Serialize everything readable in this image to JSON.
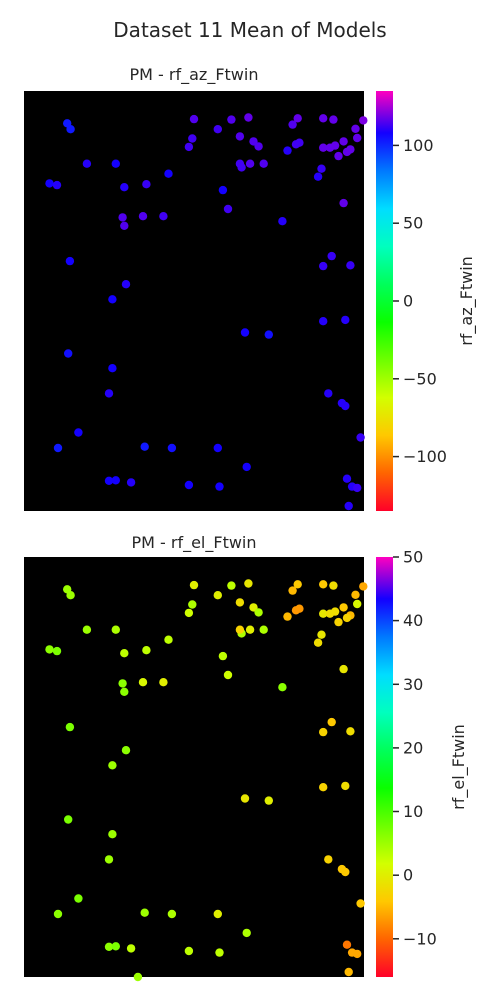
{
  "figure": {
    "title": "Dataset 11 Mean of Models"
  },
  "chart_data": [
    {
      "type": "scatter",
      "title": "PM - rf_az_Ftwin",
      "colorbar": {
        "label": "rf_az_Ftwin",
        "range": [
          -135,
          135
        ],
        "ticks": [
          100,
          50,
          0,
          -50,
          -100
        ],
        "tick_labels": [
          "100",
          "50",
          "0",
          "−50",
          "−100"
        ],
        "colormap": "gist_rainbow"
      },
      "axes": {
        "xticks": false,
        "yticks": false,
        "background": "#000000",
        "grid": false,
        "xlim": [
          0,
          1
        ],
        "ylim": [
          0,
          1
        ]
      },
      "points": [
        {
          "x": 0.127,
          "y": 0.923,
          "v": 103
        },
        {
          "x": 0.137,
          "y": 0.909,
          "v": 103
        },
        {
          "x": 0.075,
          "y": 0.78,
          "v": 108
        },
        {
          "x": 0.097,
          "y": 0.776,
          "v": 110
        },
        {
          "x": 0.185,
          "y": 0.827,
          "v": 110
        },
        {
          "x": 0.27,
          "y": 0.827,
          "v": 108
        },
        {
          "x": 0.295,
          "y": 0.771,
          "v": 110
        },
        {
          "x": 0.36,
          "y": 0.778,
          "v": 112
        },
        {
          "x": 0.35,
          "y": 0.702,
          "v": 115
        },
        {
          "x": 0.29,
          "y": 0.699,
          "v": 115
        },
        {
          "x": 0.295,
          "y": 0.679,
          "v": 115
        },
        {
          "x": 0.41,
          "y": 0.702,
          "v": 113
        },
        {
          "x": 0.425,
          "y": 0.803,
          "v": 108
        },
        {
          "x": 0.5,
          "y": 0.933,
          "v": 115
        },
        {
          "x": 0.485,
          "y": 0.867,
          "v": 113
        },
        {
          "x": 0.495,
          "y": 0.887,
          "v": 113
        },
        {
          "x": 0.57,
          "y": 0.909,
          "v": 113
        },
        {
          "x": 0.61,
          "y": 0.932,
          "v": 115
        },
        {
          "x": 0.66,
          "y": 0.937,
          "v": 117
        },
        {
          "x": 0.64,
          "y": 0.818,
          "v": 113
        },
        {
          "x": 0.635,
          "y": 0.827,
          "v": 113
        },
        {
          "x": 0.585,
          "y": 0.764,
          "v": 108
        },
        {
          "x": 0.6,
          "y": 0.719,
          "v": 113
        },
        {
          "x": 0.635,
          "y": 0.892,
          "v": 115
        },
        {
          "x": 0.665,
          "y": 0.827,
          "v": 115
        },
        {
          "x": 0.675,
          "y": 0.88,
          "v": 115
        },
        {
          "x": 0.69,
          "y": 0.868,
          "v": 115
        },
        {
          "x": 0.705,
          "y": 0.827,
          "v": 115
        },
        {
          "x": 0.79,
          "y": 0.92,
          "v": 115
        },
        {
          "x": 0.805,
          "y": 0.935,
          "v": 117
        },
        {
          "x": 0.8,
          "y": 0.873,
          "v": 113
        },
        {
          "x": 0.81,
          "y": 0.877,
          "v": 113
        },
        {
          "x": 0.775,
          "y": 0.858,
          "v": 110
        },
        {
          "x": 0.76,
          "y": 0.69,
          "v": 110
        },
        {
          "x": 0.88,
          "y": 0.935,
          "v": 117
        },
        {
          "x": 0.91,
          "y": 0.932,
          "v": 117
        },
        {
          "x": 0.88,
          "y": 0.865,
          "v": 117
        },
        {
          "x": 0.9,
          "y": 0.865,
          "v": 117
        },
        {
          "x": 0.915,
          "y": 0.87,
          "v": 117
        },
        {
          "x": 0.94,
          "y": 0.88,
          "v": 117
        },
        {
          "x": 0.96,
          "y": 0.861,
          "v": 117
        },
        {
          "x": 0.925,
          "y": 0.845,
          "v": 117
        },
        {
          "x": 0.95,
          "y": 0.855,
          "v": 117
        },
        {
          "x": 0.975,
          "y": 0.91,
          "v": 117
        },
        {
          "x": 0.998,
          "y": 0.93,
          "v": 120
        },
        {
          "x": 0.875,
          "y": 0.815,
          "v": 112
        },
        {
          "x": 0.865,
          "y": 0.796,
          "v": 110
        },
        {
          "x": 0.94,
          "y": 0.733,
          "v": 117
        },
        {
          "x": 0.98,
          "y": 0.888,
          "v": 117
        },
        {
          "x": 0.905,
          "y": 0.607,
          "v": 112
        },
        {
          "x": 0.88,
          "y": 0.583,
          "v": 112
        },
        {
          "x": 0.96,
          "y": 0.585,
          "v": 112
        },
        {
          "x": 0.135,
          "y": 0.595,
          "v": 108
        },
        {
          "x": 0.3,
          "y": 0.54,
          "v": 110
        },
        {
          "x": 0.26,
          "y": 0.504,
          "v": 108
        },
        {
          "x": 0.13,
          "y": 0.375,
          "v": 105
        },
        {
          "x": 0.26,
          "y": 0.34,
          "v": 108
        },
        {
          "x": 0.65,
          "y": 0.425,
          "v": 108
        },
        {
          "x": 0.88,
          "y": 0.452,
          "v": 110
        },
        {
          "x": 0.945,
          "y": 0.455,
          "v": 110
        },
        {
          "x": 0.72,
          "y": 0.42,
          "v": 105
        },
        {
          "x": 0.25,
          "y": 0.28,
          "v": 110
        },
        {
          "x": 0.1,
          "y": 0.15,
          "v": 103
        },
        {
          "x": 0.16,
          "y": 0.187,
          "v": 108
        },
        {
          "x": 0.355,
          "y": 0.153,
          "v": 103
        },
        {
          "x": 0.435,
          "y": 0.15,
          "v": 105
        },
        {
          "x": 0.57,
          "y": 0.15,
          "v": 108
        },
        {
          "x": 0.895,
          "y": 0.28,
          "v": 110
        },
        {
          "x": 0.935,
          "y": 0.257,
          "v": 110
        },
        {
          "x": 0.945,
          "y": 0.25,
          "v": 110
        },
        {
          "x": 0.99,
          "y": 0.175,
          "v": 112
        },
        {
          "x": 0.95,
          "y": 0.077,
          "v": 110
        },
        {
          "x": 0.965,
          "y": 0.058,
          "v": 110
        },
        {
          "x": 0.25,
          "y": 0.072,
          "v": 108
        },
        {
          "x": 0.27,
          "y": 0.073,
          "v": 108
        },
        {
          "x": 0.315,
          "y": 0.068,
          "v": 110
        },
        {
          "x": 0.485,
          "y": 0.062,
          "v": 108
        },
        {
          "x": 0.575,
          "y": 0.058,
          "v": 108
        },
        {
          "x": 0.655,
          "y": 0.105,
          "v": 108
        },
        {
          "x": 0.955,
          "y": 0.012,
          "v": 110
        },
        {
          "x": 0.98,
          "y": 0.055,
          "v": 112
        }
      ]
    },
    {
      "type": "scatter",
      "title": "PM - rf_el_Ftwin",
      "colorbar": {
        "label": "rf_el_Ftwin",
        "range": [
          -16,
          50
        ],
        "ticks": [
          50,
          40,
          30,
          20,
          10,
          0,
          -10
        ],
        "tick_labels": [
          "50",
          "40",
          "30",
          "20",
          "10",
          "0",
          "−10"
        ],
        "colormap": "gist_rainbow"
      },
      "axes": {
        "xticks": false,
        "yticks": false,
        "background": "#000000",
        "grid": false,
        "xlim": [
          0,
          1
        ],
        "ylim": [
          0,
          1
        ]
      },
      "points": [
        {
          "x": 0.127,
          "y": 0.923,
          "v": 5
        },
        {
          "x": 0.137,
          "y": 0.909,
          "v": 5
        },
        {
          "x": 0.075,
          "y": 0.78,
          "v": 6
        },
        {
          "x": 0.097,
          "y": 0.776,
          "v": 7
        },
        {
          "x": 0.185,
          "y": 0.827,
          "v": 5
        },
        {
          "x": 0.27,
          "y": 0.827,
          "v": 4
        },
        {
          "x": 0.295,
          "y": 0.771,
          "v": 3
        },
        {
          "x": 0.36,
          "y": 0.778,
          "v": 3
        },
        {
          "x": 0.35,
          "y": 0.702,
          "v": 1
        },
        {
          "x": 0.29,
          "y": 0.699,
          "v": 6
        },
        {
          "x": 0.295,
          "y": 0.679,
          "v": 6
        },
        {
          "x": 0.41,
          "y": 0.702,
          "v": 0
        },
        {
          "x": 0.425,
          "y": 0.803,
          "v": 3
        },
        {
          "x": 0.5,
          "y": 0.933,
          "v": 0
        },
        {
          "x": 0.485,
          "y": 0.867,
          "v": 2
        },
        {
          "x": 0.495,
          "y": 0.887,
          "v": 4
        },
        {
          "x": 0.57,
          "y": 0.909,
          "v": 0
        },
        {
          "x": 0.61,
          "y": 0.932,
          "v": 3
        },
        {
          "x": 0.66,
          "y": 0.937,
          "v": -1
        },
        {
          "x": 0.64,
          "y": 0.818,
          "v": 4
        },
        {
          "x": 0.635,
          "y": 0.827,
          "v": -3
        },
        {
          "x": 0.585,
          "y": 0.764,
          "v": 3
        },
        {
          "x": 0.6,
          "y": 0.719,
          "v": 2
        },
        {
          "x": 0.635,
          "y": 0.892,
          "v": -2
        },
        {
          "x": 0.665,
          "y": 0.827,
          "v": 0
        },
        {
          "x": 0.675,
          "y": 0.88,
          "v": 0
        },
        {
          "x": 0.69,
          "y": 0.868,
          "v": 4
        },
        {
          "x": 0.705,
          "y": 0.827,
          "v": 4
        },
        {
          "x": 0.79,
          "y": 0.92,
          "v": -5
        },
        {
          "x": 0.805,
          "y": 0.935,
          "v": -4
        },
        {
          "x": 0.8,
          "y": 0.873,
          "v": -7
        },
        {
          "x": 0.81,
          "y": 0.877,
          "v": -7
        },
        {
          "x": 0.775,
          "y": 0.858,
          "v": -5
        },
        {
          "x": 0.76,
          "y": 0.69,
          "v": 6
        },
        {
          "x": 0.88,
          "y": 0.935,
          "v": -4
        },
        {
          "x": 0.91,
          "y": 0.932,
          "v": -2
        },
        {
          "x": 0.88,
          "y": 0.865,
          "v": -1
        },
        {
          "x": 0.9,
          "y": 0.865,
          "v": -2
        },
        {
          "x": 0.915,
          "y": 0.87,
          "v": -2
        },
        {
          "x": 0.94,
          "y": 0.88,
          "v": -4
        },
        {
          "x": 0.96,
          "y": 0.861,
          "v": -5
        },
        {
          "x": 0.925,
          "y": 0.845,
          "v": -3
        },
        {
          "x": 0.95,
          "y": 0.855,
          "v": -3
        },
        {
          "x": 0.975,
          "y": 0.91,
          "v": -5
        },
        {
          "x": 0.998,
          "y": 0.93,
          "v": -6
        },
        {
          "x": 0.875,
          "y": 0.815,
          "v": -1
        },
        {
          "x": 0.865,
          "y": 0.796,
          "v": -2
        },
        {
          "x": 0.94,
          "y": 0.733,
          "v": -1
        },
        {
          "x": 0.98,
          "y": 0.888,
          "v": 1
        },
        {
          "x": 0.905,
          "y": 0.607,
          "v": -4
        },
        {
          "x": 0.88,
          "y": 0.583,
          "v": -3
        },
        {
          "x": 0.96,
          "y": 0.585,
          "v": -2
        },
        {
          "x": 0.135,
          "y": 0.595,
          "v": 7
        },
        {
          "x": 0.3,
          "y": 0.54,
          "v": 6
        },
        {
          "x": 0.26,
          "y": 0.504,
          "v": 5
        },
        {
          "x": 0.13,
          "y": 0.375,
          "v": 7
        },
        {
          "x": 0.26,
          "y": 0.34,
          "v": 5
        },
        {
          "x": 0.65,
          "y": 0.425,
          "v": -1
        },
        {
          "x": 0.88,
          "y": 0.452,
          "v": -3
        },
        {
          "x": 0.945,
          "y": 0.455,
          "v": -2
        },
        {
          "x": 0.72,
          "y": 0.42,
          "v": 0
        },
        {
          "x": 0.25,
          "y": 0.28,
          "v": 5
        },
        {
          "x": 0.1,
          "y": 0.15,
          "v": 6
        },
        {
          "x": 0.16,
          "y": 0.187,
          "v": 7
        },
        {
          "x": 0.355,
          "y": 0.153,
          "v": 5
        },
        {
          "x": 0.435,
          "y": 0.15,
          "v": 4
        },
        {
          "x": 0.57,
          "y": 0.15,
          "v": 0
        },
        {
          "x": 0.895,
          "y": 0.28,
          "v": -3
        },
        {
          "x": 0.935,
          "y": 0.257,
          "v": -4
        },
        {
          "x": 0.945,
          "y": 0.25,
          "v": -4
        },
        {
          "x": 0.99,
          "y": 0.175,
          "v": -4
        },
        {
          "x": 0.95,
          "y": 0.077,
          "v": -9
        },
        {
          "x": 0.965,
          "y": 0.058,
          "v": -6
        },
        {
          "x": 0.25,
          "y": 0.072,
          "v": 6
        },
        {
          "x": 0.27,
          "y": 0.073,
          "v": 7
        },
        {
          "x": 0.315,
          "y": 0.068,
          "v": 3
        },
        {
          "x": 0.485,
          "y": 0.062,
          "v": 3
        },
        {
          "x": 0.575,
          "y": 0.058,
          "v": 3
        },
        {
          "x": 0.655,
          "y": 0.105,
          "v": 4
        },
        {
          "x": 0.955,
          "y": 0.012,
          "v": -5
        },
        {
          "x": 0.98,
          "y": 0.055,
          "v": -6
        },
        {
          "x": 0.335,
          "y": 0.0,
          "v": 5
        }
      ]
    }
  ]
}
